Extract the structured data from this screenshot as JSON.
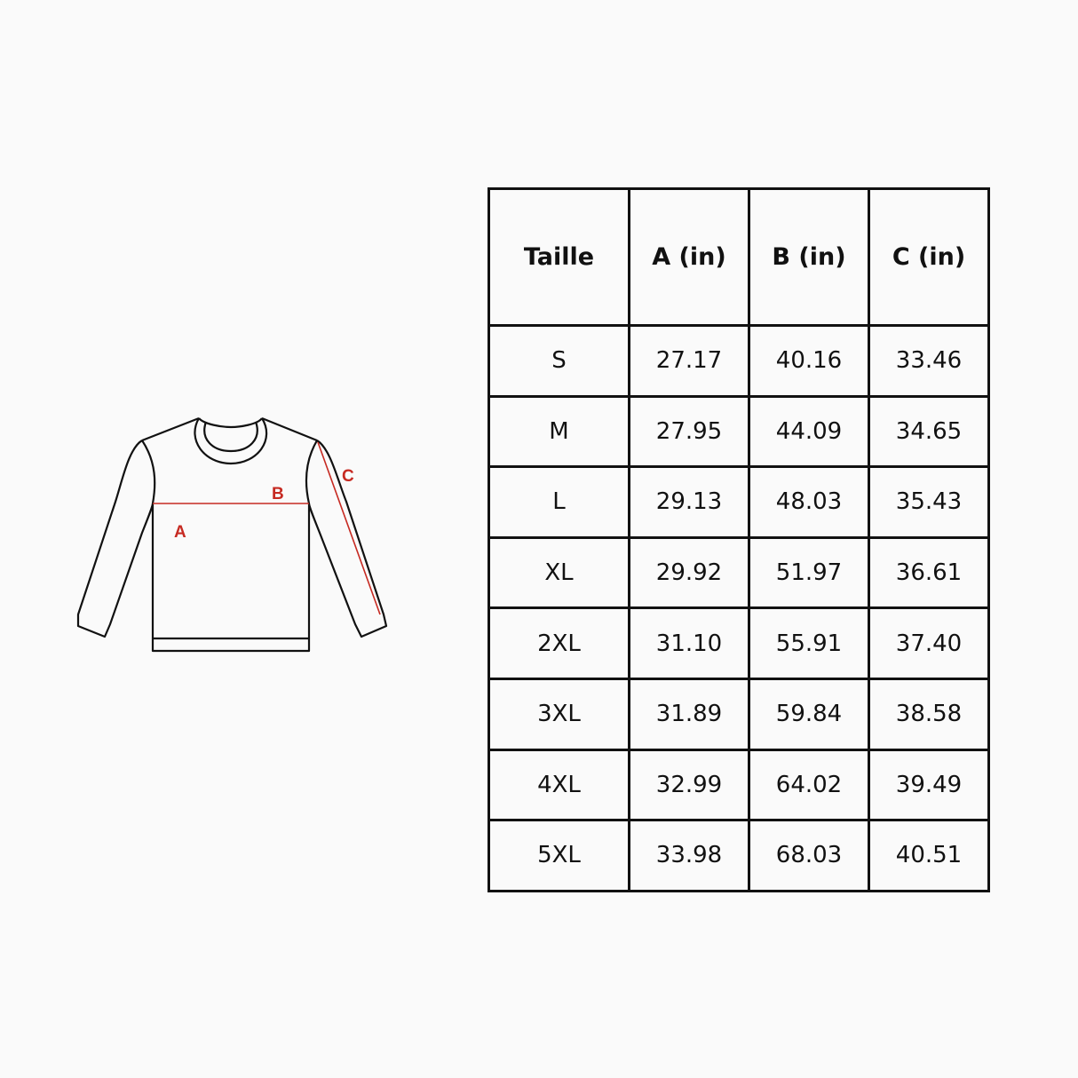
{
  "diagram": {
    "labels": {
      "a": "A",
      "b": "B",
      "c": "C"
    },
    "line_color": "#111111",
    "measure_color": "#c62a22"
  },
  "size_table": {
    "headers": [
      "Taille",
      "A (in)",
      "B (in)",
      "C (in)"
    ],
    "rows": [
      [
        "S",
        "27.17",
        "40.16",
        "33.46"
      ],
      [
        "M",
        "27.95",
        "44.09",
        "34.65"
      ],
      [
        "L",
        "29.13",
        "48.03",
        "35.43"
      ],
      [
        "XL",
        "29.92",
        "51.97",
        "36.61"
      ],
      [
        "2XL",
        "31.10",
        "55.91",
        "37.40"
      ],
      [
        "3XL",
        "31.89",
        "59.84",
        "38.58"
      ],
      [
        "4XL",
        "32.99",
        "64.02",
        "39.49"
      ],
      [
        "5XL",
        "33.98",
        "68.03",
        "40.51"
      ]
    ]
  }
}
